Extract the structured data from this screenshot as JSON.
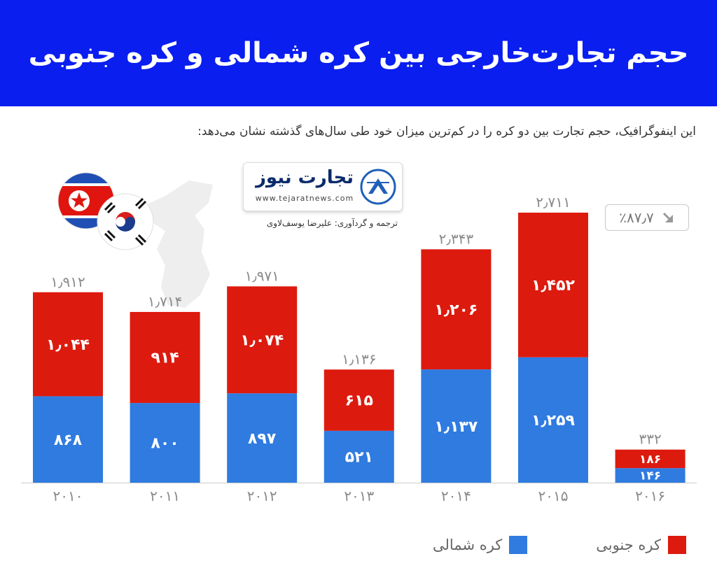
{
  "header": {
    "title": "حجم تجارت‌خارجی بین کره شمالی و کره جنوبی"
  },
  "subtitle": "این اینفوگرافیک، حجم تجارت بین دو کره را در کم‌ترین میزان خود طی سال‌های گذشته نشان می‌دهد:",
  "logo": {
    "name": "تجارت نیوز",
    "url": "www.tejaratnews.com",
    "credit": "ترجمه و گردآوری: علیرضا یوسف‌لاوی"
  },
  "badge": {
    "text": "٪۸۷٫۷",
    "icon": "arrow-down-right-icon"
  },
  "colors": {
    "header_bg": "#0a1ef0",
    "north": "#2f7be0",
    "south": "#dd1a0e",
    "axis_text": "#8a8a8a"
  },
  "chart_data": {
    "type": "bar",
    "stacked": true,
    "categories": [
      "۲۰۱۰",
      "۲۰۱۱",
      "۲۰۱۲",
      "۲۰۱۳",
      "۲۰۱۴",
      "۲۰۱۵",
      "۲۰۱۶"
    ],
    "years": [
      2010,
      2011,
      2012,
      2013,
      2014,
      2015,
      2016
    ],
    "series": [
      {
        "name": "کره شمالی",
        "color": "#2f7be0",
        "values": [
          868,
          800,
          897,
          521,
          1137,
          1259,
          146
        ],
        "labels": [
          "۸۶۸",
          "۸۰۰",
          "۸۹۷",
          "۵۲۱",
          "۱٫۱۳۷",
          "۱٫۲۵۹",
          "۱۴۶"
        ]
      },
      {
        "name": "کره جنوبی",
        "color": "#dd1a0e",
        "values": [
          1044,
          914,
          1074,
          615,
          1206,
          1452,
          186
        ],
        "labels": [
          "۱٫۰۴۴",
          "۹۱۴",
          "۱٫۰۷۴",
          "۶۱۵",
          "۱٫۲۰۶",
          "۱٫۴۵۲",
          "۱۸۶"
        ]
      }
    ],
    "totals": [
      1912,
      1714,
      1971,
      1136,
      2343,
      2711,
      332
    ],
    "total_labels": [
      "۱٫۹۱۲",
      "۱٫۷۱۴",
      "۱٫۹۷۱",
      "۱٫۱۳۶",
      "۲٫۳۴۳",
      "۲٫۷۱۱",
      "۳۳۲"
    ],
    "ylim": [
      0,
      2711
    ],
    "grid": false,
    "legend_position": "bottom"
  },
  "legend": [
    {
      "label": "کره جنوبی",
      "color": "#dd1a0e"
    },
    {
      "label": "کره شمالی",
      "color": "#2f7be0"
    }
  ]
}
